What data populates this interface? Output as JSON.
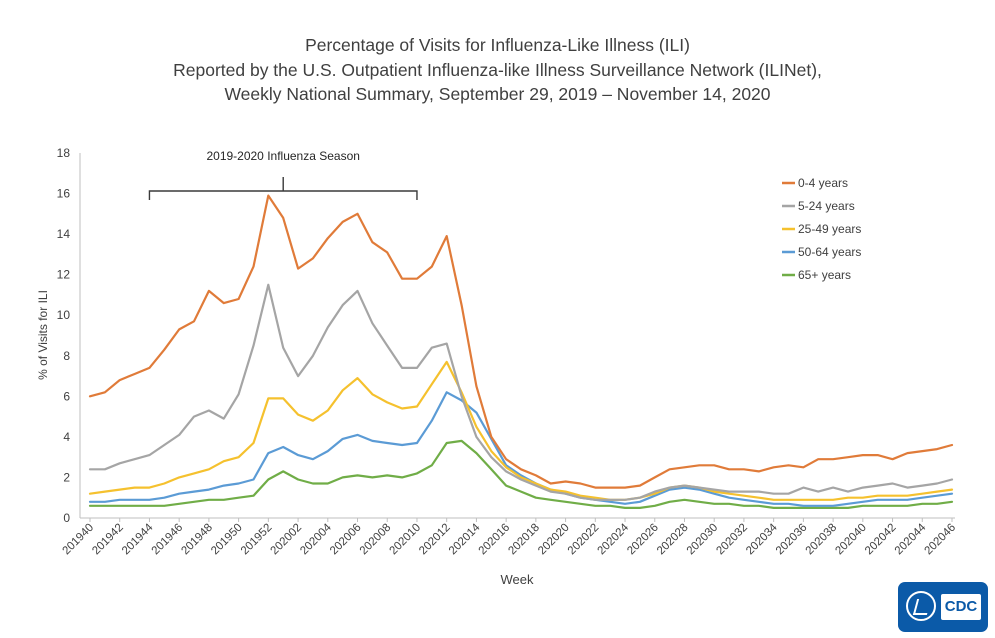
{
  "header": {
    "title_line1": "Percentage of Visits for Influenza-Like Illness (ILI)",
    "title_line2": "Reported by the U.S. Outpatient Influenza-like Illness Surveillance Network (ILINet),",
    "title_line3": "Weekly National Summary, September 29, 2019 – November 14, 2020"
  },
  "logo": {
    "text": "CDC"
  },
  "chart_data": {
    "type": "line",
    "title": "Percentage of Visits for Influenza-Like Illness (ILI) Reported by the U.S. Outpatient Influenza-like Illness Surveillance Network (ILINet), Weekly National Summary, September 29, 2019 – November 14, 2020",
    "xlabel": "Week",
    "ylabel": "% of Visits for ILI",
    "ylim": [
      0,
      18
    ],
    "yticks": [
      0,
      2,
      4,
      6,
      8,
      10,
      12,
      14,
      16,
      18
    ],
    "grid": false,
    "legend_position": "top-right",
    "annotation": {
      "text": "2019-2020 Influenza Season",
      "from_week": "201944",
      "to_week": "202010"
    },
    "x": [
      "201940",
      "201941",
      "201942",
      "201943",
      "201944",
      "201945",
      "201946",
      "201947",
      "201948",
      "201949",
      "201950",
      "201951",
      "201952",
      "202001",
      "202002",
      "202003",
      "202004",
      "202005",
      "202006",
      "202007",
      "202008",
      "202009",
      "202010",
      "202011",
      "202012",
      "202013",
      "202014",
      "202015",
      "202016",
      "202017",
      "202018",
      "202019",
      "202020",
      "202021",
      "202022",
      "202023",
      "202024",
      "202025",
      "202026",
      "202027",
      "202028",
      "202029",
      "202030",
      "202031",
      "202032",
      "202033",
      "202034",
      "202035",
      "202036",
      "202037",
      "202038",
      "202039",
      "202040",
      "202041",
      "202042",
      "202043",
      "202044",
      "202045",
      "202046"
    ],
    "xtick_labels": [
      "201940",
      "201942",
      "201944",
      "201946",
      "201948",
      "201950",
      "201952",
      "202002",
      "202004",
      "202006",
      "202008",
      "202010",
      "202012",
      "202014",
      "202016",
      "202018",
      "202020",
      "202022",
      "202024",
      "202026",
      "202028",
      "202030",
      "202032",
      "202034",
      "202036",
      "202038",
      "202040",
      "202042",
      "202044",
      "202046"
    ],
    "series": [
      {
        "name": "0-4 years",
        "color": "#e07b39",
        "values": [
          6.0,
          6.2,
          6.8,
          7.1,
          7.4,
          8.3,
          9.3,
          9.7,
          11.2,
          10.6,
          10.8,
          12.4,
          15.9,
          14.8,
          12.3,
          12.8,
          13.8,
          14.6,
          15.0,
          13.6,
          13.1,
          11.8,
          11.8,
          12.4,
          13.9,
          10.5,
          6.5,
          4.0,
          2.9,
          2.4,
          2.1,
          1.7,
          1.8,
          1.7,
          1.5,
          1.5,
          1.5,
          1.6,
          2.0,
          2.4,
          2.5,
          2.6,
          2.6,
          2.4,
          2.4,
          2.3,
          2.5,
          2.6,
          2.5,
          2.9,
          2.9,
          3.0,
          3.1,
          3.1,
          2.9,
          3.2,
          3.3,
          3.4,
          3.6
        ]
      },
      {
        "name": "5-24 years",
        "color": "#a5a5a5",
        "values": [
          2.4,
          2.4,
          2.7,
          2.9,
          3.1,
          3.6,
          4.1,
          5.0,
          5.3,
          4.9,
          6.1,
          8.5,
          11.5,
          8.4,
          7.0,
          8.0,
          9.4,
          10.5,
          11.2,
          9.6,
          8.5,
          7.4,
          7.4,
          8.4,
          8.6,
          6.0,
          4.0,
          3.0,
          2.3,
          1.9,
          1.6,
          1.3,
          1.2,
          1.0,
          0.9,
          0.9,
          0.9,
          1.0,
          1.3,
          1.5,
          1.6,
          1.5,
          1.4,
          1.3,
          1.3,
          1.3,
          1.2,
          1.2,
          1.5,
          1.3,
          1.5,
          1.3,
          1.5,
          1.6,
          1.7,
          1.5,
          1.6,
          1.7,
          1.9
        ]
      },
      {
        "name": "25-49 years",
        "color": "#f5c12e",
        "values": [
          1.2,
          1.3,
          1.4,
          1.5,
          1.5,
          1.7,
          2.0,
          2.2,
          2.4,
          2.8,
          3.0,
          3.7,
          5.9,
          5.9,
          5.1,
          4.8,
          5.3,
          6.3,
          6.9,
          6.1,
          5.7,
          5.4,
          5.5,
          6.6,
          7.7,
          6.2,
          4.5,
          3.3,
          2.5,
          2.0,
          1.7,
          1.4,
          1.3,
          1.1,
          1.0,
          0.9,
          0.9,
          1.0,
          1.2,
          1.5,
          1.6,
          1.5,
          1.3,
          1.2,
          1.1,
          1.0,
          0.9,
          0.9,
          0.9,
          0.9,
          0.9,
          1.0,
          1.0,
          1.1,
          1.1,
          1.1,
          1.2,
          1.3,
          1.4
        ]
      },
      {
        "name": "50-64 years",
        "color": "#5b9bd5",
        "values": [
          0.8,
          0.8,
          0.9,
          0.9,
          0.9,
          1.0,
          1.2,
          1.3,
          1.4,
          1.6,
          1.7,
          1.9,
          3.2,
          3.5,
          3.1,
          2.9,
          3.3,
          3.9,
          4.1,
          3.8,
          3.7,
          3.6,
          3.7,
          4.8,
          6.2,
          5.8,
          5.2,
          3.9,
          2.6,
          2.1,
          1.7,
          1.4,
          1.2,
          1.0,
          0.9,
          0.8,
          0.7,
          0.8,
          1.1,
          1.4,
          1.5,
          1.4,
          1.2,
          1.0,
          0.9,
          0.8,
          0.7,
          0.7,
          0.6,
          0.6,
          0.6,
          0.7,
          0.8,
          0.9,
          0.9,
          0.9,
          1.0,
          1.1,
          1.2
        ]
      },
      {
        "name": "65+ years",
        "color": "#70ad47",
        "values": [
          0.6,
          0.6,
          0.6,
          0.6,
          0.6,
          0.6,
          0.7,
          0.8,
          0.9,
          0.9,
          1.0,
          1.1,
          1.9,
          2.3,
          1.9,
          1.7,
          1.7,
          2.0,
          2.1,
          2.0,
          2.1,
          2.0,
          2.2,
          2.6,
          3.7,
          3.8,
          3.2,
          2.4,
          1.6,
          1.3,
          1.0,
          0.9,
          0.8,
          0.7,
          0.6,
          0.6,
          0.5,
          0.5,
          0.6,
          0.8,
          0.9,
          0.8,
          0.7,
          0.7,
          0.6,
          0.6,
          0.5,
          0.5,
          0.5,
          0.5,
          0.5,
          0.5,
          0.6,
          0.6,
          0.6,
          0.6,
          0.7,
          0.7,
          0.8
        ]
      }
    ]
  }
}
